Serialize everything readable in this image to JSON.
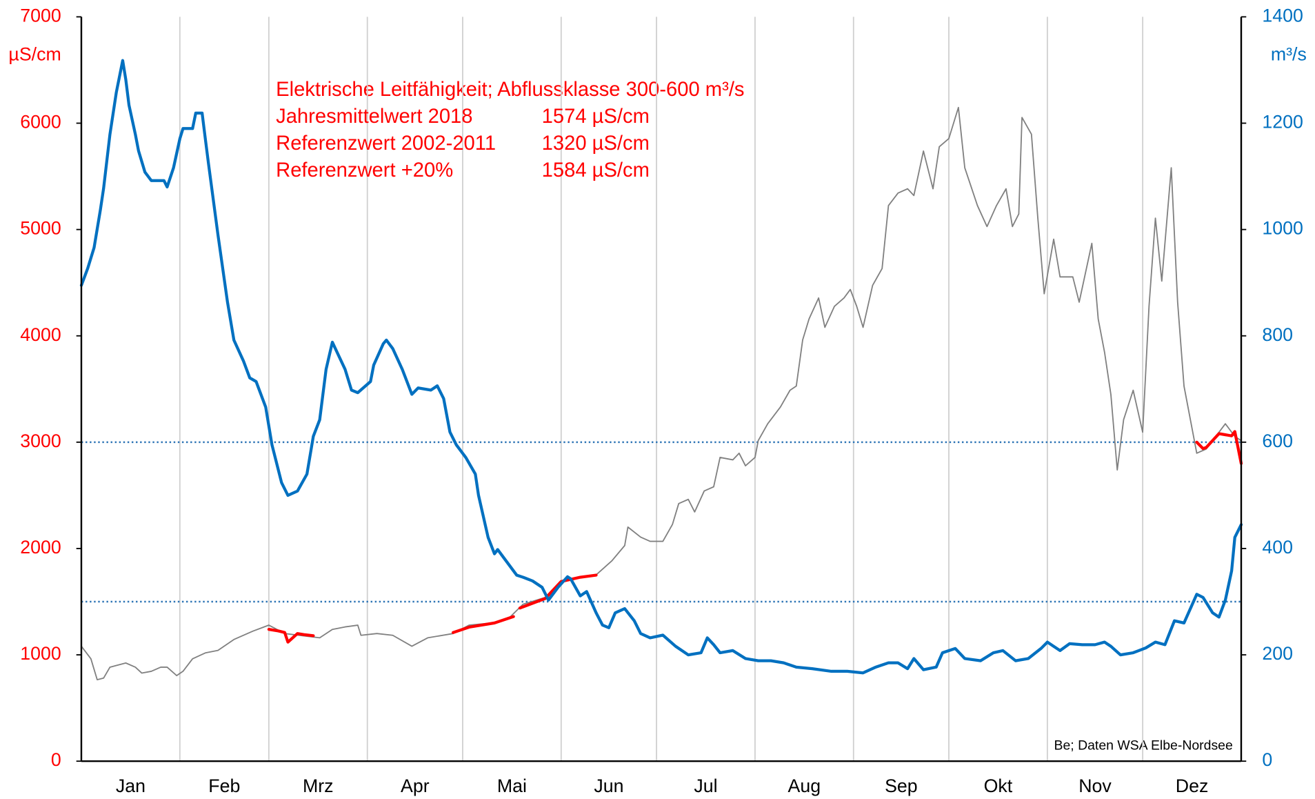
{
  "chart_data": {
    "type": "line",
    "y_label": "µS/cm",
    "y2_label": "m³/s",
    "annotation_title": "Elektrische Leitfähigkeit; Abflussklasse 300-600 m³/s",
    "annotation_rows": [
      [
        "Jahresmittelwert 2018",
        "1574 µS/cm"
      ],
      [
        "Referenzwert 2002-2011",
        "1320 µS/cm"
      ],
      [
        "Referenzwert +20%",
        "1584 µS/cm"
      ]
    ],
    "credit": "Be; Daten WSA Elbe-Nordsee",
    "categories": [
      "Jan",
      "Feb",
      "Mrz",
      "Apr",
      "Mai",
      "Jun",
      "Jul",
      "Aug",
      "Sep",
      "Okt",
      "Nov",
      "Dez"
    ],
    "xgrid": [
      31,
      59,
      90,
      120,
      151,
      181,
      212,
      243,
      273,
      304,
      334
    ],
    "xlim": [
      0,
      365
    ],
    "ylim": [
      0,
      7000
    ],
    "yticks": [
      0,
      1000,
      2000,
      3000,
      4000,
      5000,
      6000,
      7000
    ],
    "y2lim": [
      0,
      1400
    ],
    "y2ticks": [
      0,
      200,
      400,
      600,
      800,
      1000,
      1200,
      1400
    ],
    "y_color": "#ff0000",
    "y2_color": "#0070c0",
    "hlines": [
      {
        "value": 300,
        "axis": "y2",
        "color": "#2e75b6"
      },
      {
        "value": 600,
        "axis": "y2",
        "color": "#2e75b6"
      }
    ],
    "series": [
      {
        "name": "Leitfähigkeit",
        "color": "#808080",
        "width": 1.5,
        "axis": "y",
        "x": [
          0,
          3,
          5,
          7,
          9,
          11,
          14,
          17,
          19,
          22,
          25,
          27,
          30,
          32,
          35,
          39,
          43,
          48,
          54,
          59,
          64,
          75,
          79,
          83,
          87,
          88,
          93,
          98,
          104,
          109,
          117,
          122,
          130,
          135,
          139,
          146,
          151,
          157,
          162,
          167,
          171,
          172,
          176,
          179,
          183,
          186,
          188,
          191,
          193,
          196,
          199,
          201,
          205,
          207,
          209,
          212,
          213,
          216,
          220,
          223,
          225,
          227,
          229,
          232,
          234,
          237,
          240,
          242,
          244,
          246,
          249,
          252,
          254,
          257,
          260,
          262,
          265,
          268,
          270,
          273,
          276,
          278,
          282,
          285,
          288,
          291,
          293,
          295,
          296,
          299,
          301,
          303,
          306,
          308,
          312,
          314,
          318,
          320,
          322,
          324,
          326,
          328,
          331,
          334,
          336,
          338,
          340,
          343,
          345,
          347,
          351,
          354,
          357,
          360,
          363,
          365
        ],
        "values": [
          1081,
          963,
          766,
          781,
          884,
          900,
          923,
          884,
          829,
          845,
          884,
          884,
          805,
          845,
          963,
          1018,
          1042,
          1144,
          1223,
          1279,
          1200,
          1160,
          1239,
          1263,
          1279,
          1184,
          1200,
          1184,
          1081,
          1160,
          1200,
          1279,
          1302,
          1358,
          1476,
          1540,
          1689,
          1729,
          1752,
          1886,
          2028,
          2202,
          2107,
          2068,
          2068,
          2226,
          2423,
          2462,
          2344,
          2541,
          2581,
          2857,
          2834,
          2896,
          2778,
          2857,
          3015,
          3173,
          3331,
          3488,
          3528,
          3962,
          4159,
          4356,
          4080,
          4278,
          4356,
          4436,
          4278,
          4080,
          4475,
          4633,
          5225,
          5343,
          5383,
          5320,
          5738,
          5383,
          5778,
          5856,
          6148,
          5580,
          5225,
          5028,
          5225,
          5383,
          5028,
          5146,
          6054,
          5896,
          5107,
          4396,
          4909,
          4554,
          4554,
          4317,
          4870,
          4159,
          3844,
          3449,
          2739,
          3212,
          3488,
          3094,
          4278,
          5107,
          4515,
          5580,
          4317,
          3528,
          2896,
          2936,
          3054,
          3173,
          3054,
          3015
        ]
      },
      {
        "name": "Leitfähigkeit Abflussklasse 300-600",
        "color": "#ff0000",
        "width": 3.5,
        "axis": "y",
        "x": [
          59,
          62,
          64,
          65,
          68,
          70,
          73,
          null,
          117,
          122,
          130,
          136,
          null,
          138,
          146,
          151,
          157,
          162,
          null,
          351,
          353,
          354,
          358,
          362,
          363,
          365
        ],
        "values": [
          1240,
          1225,
          1210,
          1120,
          1200,
          1190,
          1180,
          null,
          1210,
          1260,
          1300,
          1360,
          null,
          1440,
          1530,
          1690,
          1730,
          1750,
          null,
          3000,
          2940,
          2950,
          3080,
          3060,
          3100,
          2800
        ]
      },
      {
        "name": "Abfluss",
        "color": "#0070c0",
        "width": 3.5,
        "axis": "y2",
        "x": [
          0,
          2,
          4,
          6,
          7,
          9,
          11,
          13,
          14,
          15,
          17,
          18,
          20,
          22,
          26,
          27,
          29,
          31,
          32,
          35,
          36,
          38,
          39,
          40,
          43,
          46,
          48,
          51,
          53,
          55,
          58,
          60,
          63,
          65,
          68,
          71,
          73,
          75,
          77,
          79,
          83,
          85,
          87,
          91,
          92,
          95,
          96,
          98,
          101,
          104,
          106,
          110,
          112,
          114,
          116,
          118,
          121,
          124,
          125,
          128,
          130,
          131,
          134,
          137,
          139,
          142,
          145,
          147,
          150,
          153,
          154,
          157,
          159,
          162,
          164,
          166,
          168,
          171,
          174,
          176,
          179,
          183,
          187,
          191,
          195,
          197,
          199,
          201,
          205,
          209,
          213,
          217,
          221,
          225,
          230,
          236,
          241,
          246,
          250,
          254,
          257,
          260,
          262,
          265,
          269,
          271,
          275,
          278,
          283,
          287,
          290,
          294,
          298,
          302,
          304,
          308,
          311,
          315,
          319,
          322,
          324,
          327,
          331,
          335,
          338,
          341,
          344,
          347,
          349,
          351,
          353,
          356,
          358,
          360,
          362,
          363,
          365
        ],
        "values": [
          895,
          927,
          966,
          1037,
          1077,
          1179,
          1258,
          1318,
          1282,
          1234,
          1179,
          1148,
          1108,
          1092,
          1092,
          1080,
          1116,
          1171,
          1190,
          1190,
          1219,
          1219,
          1171,
          1124,
          990,
          863,
          792,
          753,
          721,
          714,
          666,
          595,
          524,
          500,
          508,
          540,
          611,
          642,
          737,
          788,
          737,
          698,
          693,
          714,
          745,
          785,
          792,
          776,
          737,
          690,
          702,
          698,
          706,
          682,
          619,
          595,
          571,
          540,
          500,
          421,
          390,
          398,
          374,
          350,
          346,
          339,
          327,
          303,
          327,
          347,
          343,
          311,
          319,
          279,
          256,
          251,
          279,
          287,
          264,
          240,
          232,
          237,
          216,
          200,
          204,
          232,
          219,
          204,
          208,
          193,
          189,
          189,
          185,
          177,
          174,
          169,
          169,
          166,
          177,
          185,
          185,
          174,
          193,
          172,
          177,
          204,
          212,
          193,
          189,
          204,
          208,
          189,
          193,
          212,
          224,
          208,
          221,
          219,
          219,
          224,
          216,
          200,
          204,
          213,
          224,
          219,
          264,
          260,
          287,
          314,
          308,
          279,
          271,
          303,
          358,
          421,
          445
        ]
      }
    ]
  }
}
